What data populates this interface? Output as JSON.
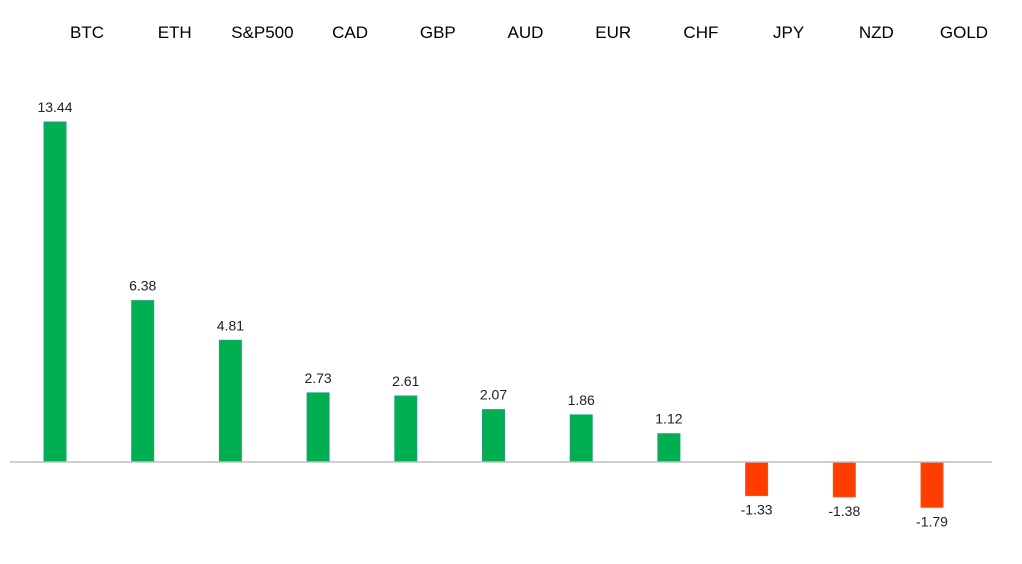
{
  "chart_data": {
    "type": "bar",
    "categories": [
      "BTC",
      "ETH",
      "S&P500",
      "CAD",
      "GBP",
      "AUD",
      "EUR",
      "CHF",
      "JPY",
      "NZD",
      "GOLD"
    ],
    "values": [
      13.44,
      6.38,
      4.81,
      2.73,
      2.61,
      2.07,
      1.86,
      1.12,
      -1.33,
      -1.38,
      -1.79
    ],
    "value_labels": [
      "13.44",
      "6.38",
      "4.81",
      "2.73",
      "2.61",
      "2.07",
      "1.86",
      "1.12",
      "-1.33",
      "-1.38",
      "-1.79"
    ],
    "title": "",
    "xlabel": "",
    "ylabel": "",
    "grid": false,
    "legend": "none",
    "category_label_position": "top",
    "colors": {
      "positive": "#00b050",
      "negative": "#ff3d00",
      "axis": "#bfbfbf"
    }
  }
}
